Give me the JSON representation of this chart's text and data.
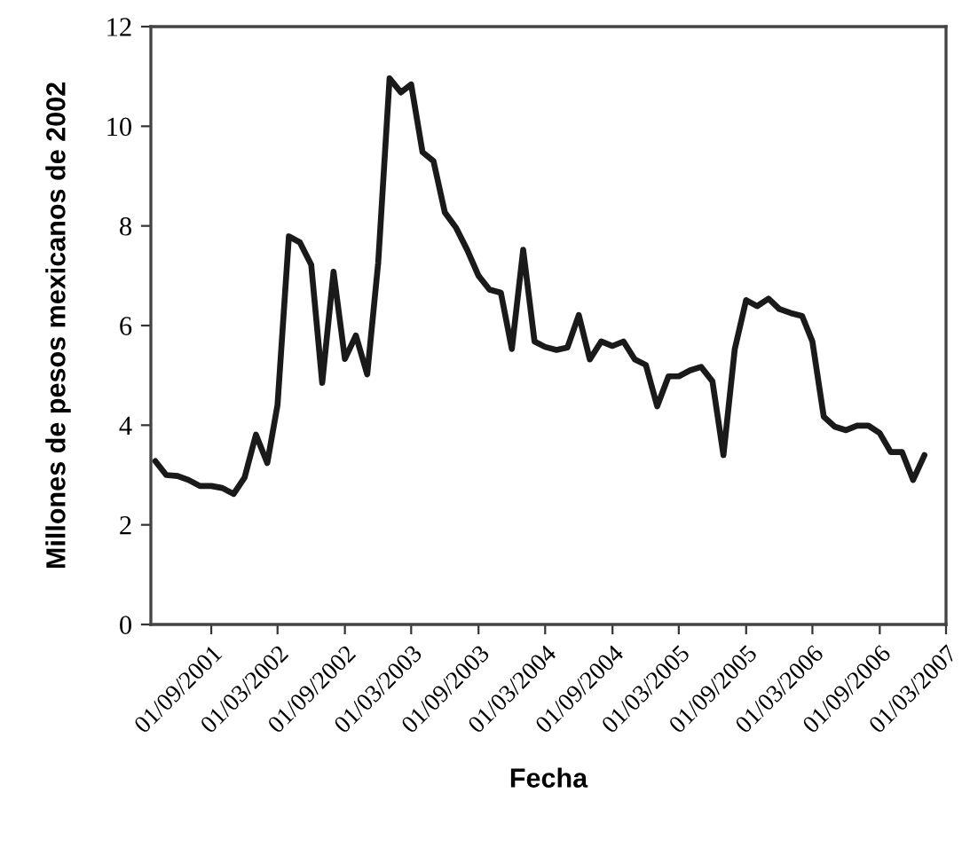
{
  "chart_data": {
    "type": "line",
    "xlabel": "Fecha",
    "ylabel": "Millones de pesos mexicanos de 2002",
    "x": [
      "2001-04",
      "2001-05",
      "2001-06",
      "2001-07",
      "2001-08",
      "2001-09",
      "2001-10",
      "2001-11",
      "2001-12",
      "2002-01",
      "2002-02",
      "2002-03",
      "2002-04",
      "2002-05",
      "2002-06",
      "2002-07",
      "2002-08",
      "2002-09",
      "2002-10",
      "2002-11",
      "2002-12",
      "2003-01",
      "2003-02",
      "2003-03",
      "2003-04",
      "2003-05",
      "2003-06",
      "2003-07",
      "2003-08",
      "2003-09",
      "2003-10",
      "2003-11",
      "2003-12",
      "2004-01",
      "2004-02",
      "2004-03",
      "2004-04",
      "2004-05",
      "2004-06",
      "2004-07",
      "2004-08",
      "2004-09",
      "2004-10",
      "2004-11",
      "2004-12",
      "2005-01",
      "2005-02",
      "2005-03",
      "2005-04",
      "2005-05",
      "2005-06",
      "2005-07",
      "2005-08",
      "2005-09",
      "2005-10",
      "2005-11",
      "2005-12",
      "2006-01",
      "2006-02",
      "2006-03",
      "2006-04",
      "2006-05",
      "2006-06",
      "2006-07",
      "2006-08",
      "2006-09",
      "2006-10",
      "2006-11",
      "2006-12",
      "2007-01"
    ],
    "series": [
      {
        "color": "#1a1a1a",
        "values": [
          3.28,
          3.0,
          2.98,
          2.9,
          2.78,
          2.78,
          2.74,
          2.62,
          2.95,
          3.81,
          3.24,
          4.41,
          7.79,
          7.67,
          7.22,
          4.85,
          7.08,
          5.33,
          5.8,
          5.02,
          7.26,
          10.96,
          10.68,
          10.84,
          9.48,
          9.3,
          8.27,
          7.97,
          7.52,
          7.0,
          6.72,
          6.66,
          5.53,
          7.52,
          5.68,
          5.57,
          5.51,
          5.56,
          6.21,
          5.32,
          5.68,
          5.59,
          5.68,
          5.32,
          5.21,
          4.38,
          4.98,
          4.98,
          5.1,
          5.17,
          4.88,
          3.4,
          5.53,
          6.51,
          6.39,
          6.54,
          6.33,
          6.25,
          6.19,
          5.68,
          4.17,
          3.97,
          3.9,
          3.99,
          3.99,
          3.84,
          3.46,
          3.46,
          2.9,
          3.4
        ]
      }
    ],
    "xlim": [
      "2001-03-20",
      "2007-03-01"
    ],
    "xticks": [
      {
        "value": "2001-09",
        "label": "01/09/2001"
      },
      {
        "value": "2002-03",
        "label": "01/03/2002"
      },
      {
        "value": "2002-09",
        "label": "01/09/2002"
      },
      {
        "value": "2003-03",
        "label": "01/03/2003"
      },
      {
        "value": "2003-09",
        "label": "01/09/2003"
      },
      {
        "value": "2004-03",
        "label": "01/03/2004"
      },
      {
        "value": "2004-09",
        "label": "01/09/2004"
      },
      {
        "value": "2005-03",
        "label": "01/03/2005"
      },
      {
        "value": "2005-09",
        "label": "01/09/2005"
      },
      {
        "value": "2006-03",
        "label": "01/03/2006"
      },
      {
        "value": "2006-09",
        "label": "01/09/2006"
      },
      {
        "value": "2007-03",
        "label": "01/03/2007"
      }
    ],
    "ylim": [
      0,
      12
    ],
    "yticks": [
      0,
      2,
      4,
      6,
      8,
      10,
      12
    ],
    "grid": false,
    "marker": "none",
    "line_style": "solid"
  }
}
